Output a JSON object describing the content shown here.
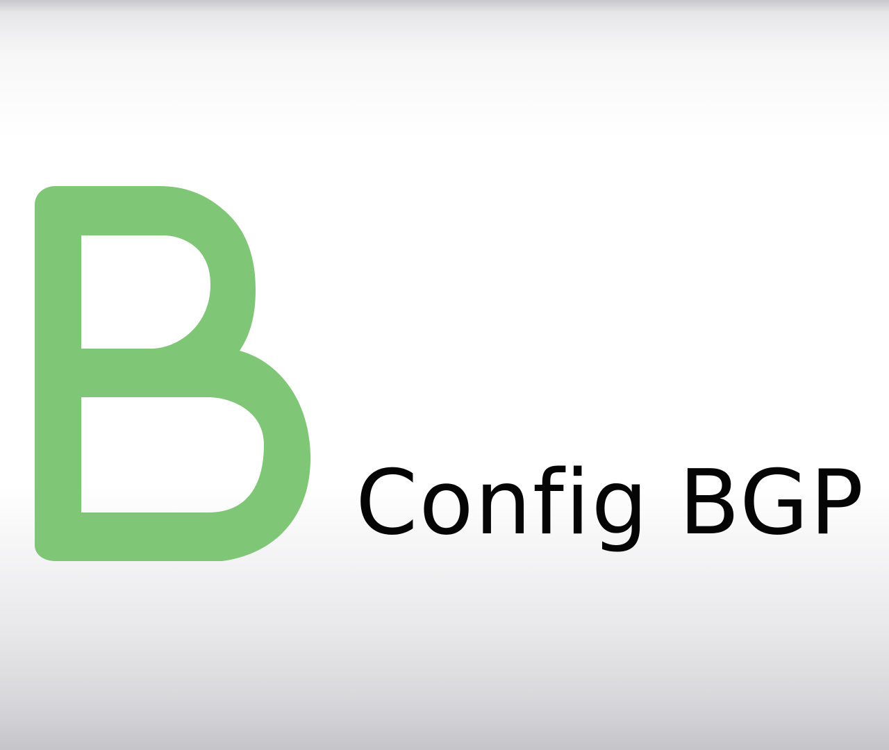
{
  "logo": {
    "icon": "letter-b-logo-icon",
    "color": "#7fc676"
  },
  "title": "Config BGP"
}
